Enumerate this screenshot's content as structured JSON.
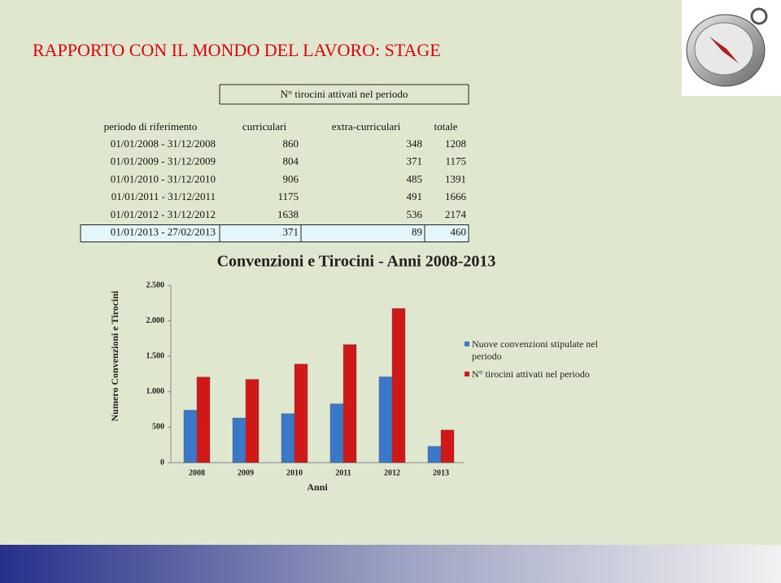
{
  "slide": {
    "title": "RAPPORTO CON IL MONDO DEL LAVORO: STAGE",
    "table": {
      "group_header": "N° tirocini attivati nel periodo",
      "header": [
        "periodo di riferimento",
        "curriculari",
        "extra-curriculari",
        "totale"
      ],
      "rows": [
        [
          "01/01/2008 - 31/12/2008",
          860,
          348,
          1208
        ],
        [
          "01/01/2009 - 31/12/2009",
          804,
          371,
          1175
        ],
        [
          "01/01/2010 - 31/12/2010",
          906,
          485,
          1391
        ],
        [
          "01/01/2011 - 31/12/2011",
          1175,
          491,
          1666
        ],
        [
          "01/01/2012 - 31/12/2012",
          1638,
          536,
          2174
        ],
        [
          "01/01/2013 - 27/02/2013",
          371,
          89,
          460
        ]
      ]
    }
  },
  "chart_data": {
    "type": "bar",
    "title": "Convenzioni e Tirocini - Anni 2008-2013",
    "x_label": "Anni",
    "y_label": "Numero Convenzioni e Tirocini",
    "categories": [
      "2008",
      "2009",
      "2010",
      "2011",
      "2012",
      "2013"
    ],
    "series": [
      {
        "name": "Nuove convenzioni stipulate nel periodo",
        "color": "#3a78c9",
        "values": [
          740,
          630,
          690,
          830,
          1210,
          230
        ]
      },
      {
        "name": "N° tirocini attivati nel periodo",
        "color": "#d01818",
        "values": [
          1208,
          1175,
          1391,
          1666,
          2174,
          460
        ]
      }
    ],
    "ylim": [
      0,
      2500
    ],
    "yticks": [
      0,
      500,
      {
        "value": 1000,
        "label": "1.000"
      },
      {
        "value": 1500,
        "label": "1.500"
      },
      {
        "value": 2000,
        "label": "2.000"
      },
      {
        "value": 2500,
        "label": "2.500"
      }
    ],
    "legend": "right"
  }
}
